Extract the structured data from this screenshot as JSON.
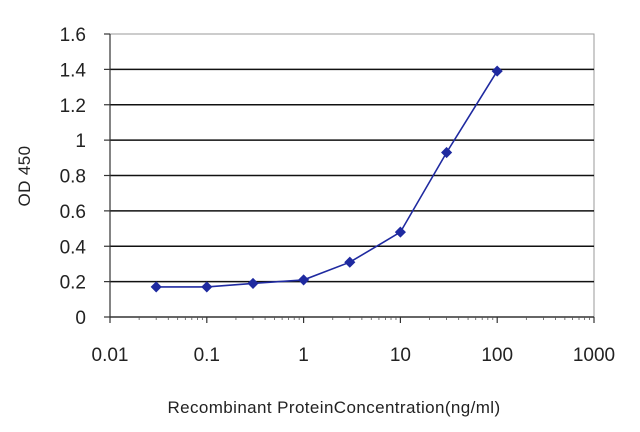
{
  "chart_data": {
    "type": "line",
    "title": "",
    "xlabel": "Recombinant ProteinConcentration(ng/ml)",
    "ylabel": "OD 450",
    "x_scale": "log",
    "xlim": [
      0.01,
      1000
    ],
    "ylim": [
      0,
      1.6
    ],
    "x_ticks": [
      0.01,
      0.1,
      1,
      10,
      100,
      1000
    ],
    "x_tick_labels": [
      "0.01",
      "0.1",
      "1",
      "10",
      "100",
      "1000"
    ],
    "y_ticks": [
      0,
      0.2,
      0.4,
      0.6,
      0.8,
      1,
      1.2,
      1.4,
      1.6
    ],
    "y_tick_labels": [
      "0",
      "0.2",
      "0.4",
      "0.6",
      "0.8",
      "1",
      "1.2",
      "1.4",
      "1.6"
    ],
    "grid": "horizontal",
    "legend": "none",
    "series": [
      {
        "x": [
          0.03,
          0.1,
          0.3,
          1,
          3,
          10,
          30,
          100
        ],
        "y": [
          0.17,
          0.17,
          0.19,
          0.21,
          0.31,
          0.48,
          0.93,
          1.39
        ],
        "color": "#1f2aa0",
        "marker": "diamond"
      }
    ]
  }
}
